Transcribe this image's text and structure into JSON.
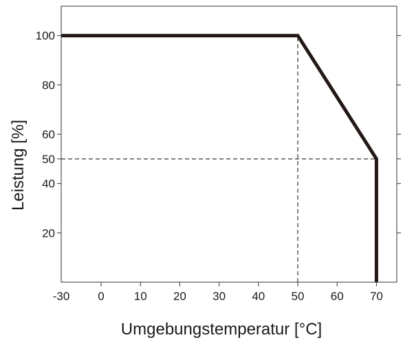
{
  "chart_data": {
    "type": "line",
    "xlabel": "Umgebungstemperatur [°C]",
    "ylabel": "Leistung [%]",
    "xlim": [
      -30,
      77
    ],
    "ylim": [
      0,
      113
    ],
    "x_ticks": [
      -30,
      0,
      10,
      20,
      30,
      40,
      50,
      60,
      70
    ],
    "y_ticks": [
      20,
      40,
      50,
      60,
      80,
      100
    ],
    "series": [
      {
        "x": [
          -30,
          50,
          70,
          70
        ],
        "y": [
          100,
          100,
          50,
          0
        ],
        "color": "#231815"
      }
    ],
    "reference_lines": [
      {
        "orientation": "vertical",
        "x": 50,
        "from_y": 0,
        "to_y": 100,
        "style": "dashed"
      },
      {
        "orientation": "horizontal",
        "y": 50,
        "from_x": -30,
        "to_x": 70,
        "style": "dashed"
      }
    ],
    "grid": false,
    "legend": "none"
  }
}
